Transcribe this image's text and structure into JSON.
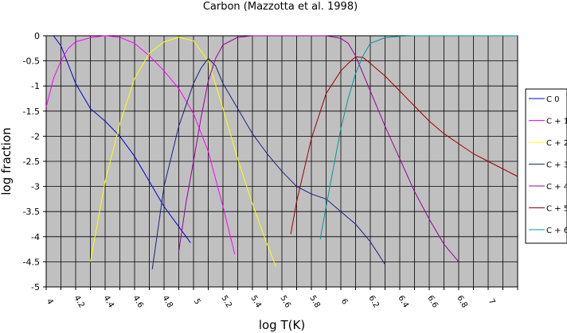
{
  "chart_data": {
    "type": "line",
    "title": "Carbon  (Mazzotta et al.  1998)",
    "xlabel": "log T(K)",
    "ylabel": "log fraction",
    "xlim": [
      4,
      7.2
    ],
    "ylim": [
      -5,
      0
    ],
    "grid": true,
    "legend_position": "right",
    "x_ticks": [
      4.0,
      4.1,
      4.2,
      4.3,
      4.4,
      4.5,
      4.6,
      4.7,
      4.8,
      4.9,
      5.0,
      5.1,
      5.2,
      5.3,
      5.4,
      5.5,
      5.6,
      5.7,
      5.8,
      5.9,
      6.0,
      6.1,
      6.2,
      6.3,
      6.4,
      6.5,
      6.6,
      6.7,
      6.8,
      6.9,
      7.0,
      7.1,
      7.2
    ],
    "x_tick_labels": [
      "4",
      "",
      "4.2",
      "",
      "4.4",
      "",
      "4.6",
      "",
      "4.8",
      "",
      "5",
      "",
      "5.2",
      "",
      "5.4",
      "",
      "5.6",
      "",
      "5.8",
      "",
      "6",
      "",
      "6.2",
      "",
      "6.4",
      "",
      "6.6",
      "",
      "6.8",
      "",
      "7",
      "",
      ""
    ],
    "y_ticks": [
      0,
      -0.5,
      -1,
      -1.5,
      -2,
      -2.5,
      -3,
      -3.5,
      -4,
      -4.5,
      -5
    ],
    "y_tick_labels": [
      "0",
      "-0.5",
      "-1",
      "-1.5",
      "-2",
      "-2.5",
      "-3",
      "-3.5",
      "-4",
      "-4.5",
      "-5"
    ],
    "series": [
      {
        "name": "C  0",
        "color": "#0000cc",
        "x": [
          4.05,
          4.1,
          4.2,
          4.3,
          4.4,
          4.5,
          4.6,
          4.7,
          4.8,
          4.9,
          4.98
        ],
        "y": [
          0,
          -0.2,
          -0.95,
          -1.45,
          -1.7,
          -2.0,
          -2.4,
          -2.9,
          -3.4,
          -3.8,
          -4.12
        ]
      },
      {
        "name": "C + 1",
        "color": "#ff00ff",
        "x": [
          4.0,
          4.05,
          4.1,
          4.15,
          4.2,
          4.3,
          4.4,
          4.5,
          4.6,
          4.7,
          4.8,
          4.9,
          5.0,
          5.1,
          5.2,
          5.28
        ],
        "y": [
          -1.42,
          -0.85,
          -0.5,
          -0.25,
          -0.12,
          -0.04,
          0,
          -0.03,
          -0.15,
          -0.4,
          -0.7,
          -1.05,
          -1.55,
          -2.3,
          -3.4,
          -4.35
        ]
      },
      {
        "name": "C + 2",
        "color": "#ffff00",
        "x": [
          4.3,
          4.4,
          4.5,
          4.6,
          4.7,
          4.8,
          4.9,
          5.0,
          5.1,
          5.2,
          5.3,
          5.4,
          5.5,
          5.56
        ],
        "y": [
          -4.5,
          -2.9,
          -1.75,
          -0.85,
          -0.35,
          -0.12,
          -0.03,
          -0.1,
          -0.5,
          -1.45,
          -2.45,
          -3.35,
          -4.15,
          -4.6
        ]
      },
      {
        "name": "C + 3",
        "color": "#1a237e",
        "x": [
          4.72,
          4.8,
          4.9,
          5.0,
          5.05,
          5.1,
          5.15,
          5.2,
          5.3,
          5.4,
          5.5,
          5.6,
          5.7,
          5.8,
          5.9,
          6.0,
          6.1,
          6.2,
          6.3
        ],
        "y": [
          -4.65,
          -3.0,
          -1.8,
          -0.95,
          -0.65,
          -0.45,
          -0.6,
          -0.95,
          -1.45,
          -1.95,
          -2.35,
          -2.7,
          -3.0,
          -3.15,
          -3.25,
          -3.5,
          -3.75,
          -4.1,
          -4.55
        ]
      },
      {
        "name": "C + 4",
        "color": "#990099",
        "x": [
          4.9,
          4.95,
          5.0,
          5.05,
          5.1,
          5.15,
          5.2,
          5.3,
          5.4,
          5.6,
          5.8,
          5.9,
          6.0,
          6.05,
          6.1,
          6.2,
          6.3,
          6.4,
          6.5,
          6.6,
          6.7,
          6.8
        ],
        "y": [
          -4.3,
          -3.3,
          -2.5,
          -1.65,
          -0.9,
          -0.45,
          -0.18,
          -0.03,
          0,
          0,
          0,
          0,
          -0.05,
          -0.15,
          -0.4,
          -1.1,
          -1.8,
          -2.45,
          -3.1,
          -3.65,
          -4.15,
          -4.5
        ]
      },
      {
        "name": "C + 5",
        "color": "#990000",
        "x": [
          5.66,
          5.7,
          5.8,
          5.9,
          6.0,
          6.05,
          6.1,
          6.15,
          6.2,
          6.3,
          6.4,
          6.5,
          6.6,
          6.7,
          6.8,
          6.9,
          7.0,
          7.1,
          7.2
        ],
        "y": [
          -3.95,
          -3.3,
          -2.05,
          -1.15,
          -0.7,
          -0.55,
          -0.42,
          -0.43,
          -0.55,
          -0.8,
          -1.1,
          -1.4,
          -1.7,
          -1.95,
          -2.15,
          -2.35,
          -2.5,
          -2.65,
          -2.8
        ]
      },
      {
        "name": "C + 6",
        "color": "#009999",
        "x": [
          5.86,
          5.9,
          6.0,
          6.05,
          6.1,
          6.15,
          6.2,
          6.3,
          6.4,
          6.5,
          6.6,
          6.8,
          7.0,
          7.2
        ],
        "y": [
          -4.05,
          -3.4,
          -1.85,
          -1.25,
          -0.75,
          -0.4,
          -0.15,
          -0.04,
          -0.01,
          0,
          0,
          0,
          0,
          0
        ]
      }
    ]
  }
}
